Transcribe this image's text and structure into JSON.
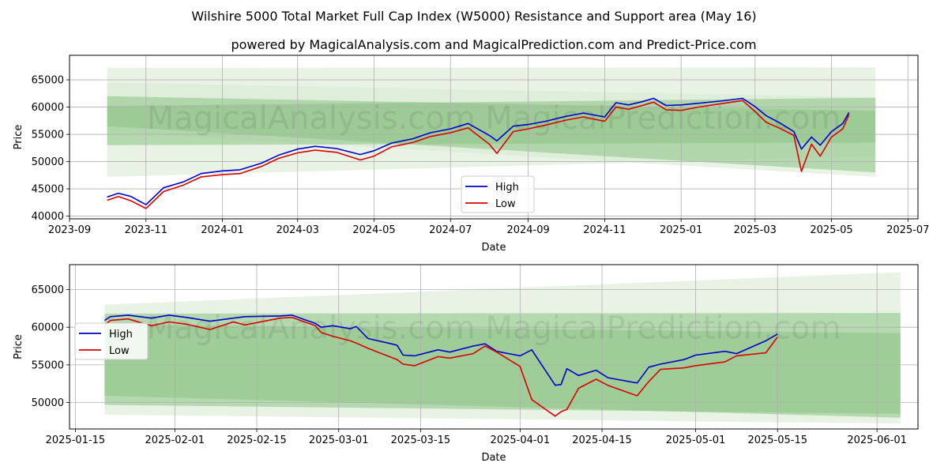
{
  "title": "Wilshire 5000 Total Market Full Cap Index (W5000) Resistance and Support area (May 16)",
  "subtitle": "powered by MagicalAnalysis.com and MagicalPrediction.com and Predict-Price.com",
  "watermark": "MagicalAnalysis.com     MagicalPrediction.com",
  "colors": {
    "high": "#0000cc",
    "low": "#dd0000",
    "band_light": "#d8ebd3",
    "band_dark": "#8ac383"
  },
  "chart_data": [
    {
      "type": "line",
      "xlabel": "Date",
      "ylabel": "Price",
      "ylim": [
        39500,
        69500
      ],
      "xlim": [
        "2023-09-01",
        "2025-07-09"
      ],
      "yticks": [
        40000,
        45000,
        50000,
        55000,
        60000,
        65000
      ],
      "xticks": [
        {
          "date": "2023-09-01",
          "label": "2023-09"
        },
        {
          "date": "2023-11-01",
          "label": "2023-11"
        },
        {
          "date": "2024-01-01",
          "label": "2024-01"
        },
        {
          "date": "2024-03-01",
          "label": "2024-03"
        },
        {
          "date": "2024-05-01",
          "label": "2024-05"
        },
        {
          "date": "2024-07-01",
          "label": "2024-07"
        },
        {
          "date": "2024-09-01",
          "label": "2024-09"
        },
        {
          "date": "2024-11-01",
          "label": "2024-11"
        },
        {
          "date": "2025-01-01",
          "label": "2025-01"
        },
        {
          "date": "2025-03-01",
          "label": "2025-03"
        },
        {
          "date": "2025-05-01",
          "label": "2025-05"
        },
        {
          "date": "2025-07-01",
          "label": "2025-07"
        }
      ],
      "legend": "lower-center",
      "bands": [
        {
          "name": "outer-upper",
          "x": [
            "2023-10-01",
            "2025-06-05"
          ],
          "y_top": [
            67200,
            67300
          ],
          "y_bottom": [
            55500,
            47200
          ],
          "shade": "light"
        },
        {
          "name": "outer-lower",
          "x": [
            "2023-10-01",
            "2025-06-05"
          ],
          "y_top": [
            64500,
            61800
          ],
          "y_bottom": [
            47200,
            51000
          ],
          "shade": "light"
        },
        {
          "name": "inner-upper",
          "x": [
            "2023-10-01",
            "2025-06-05"
          ],
          "y_top": [
            60200,
            61700
          ],
          "y_bottom": [
            56500,
            48000
          ],
          "shade": "dark"
        },
        {
          "name": "inner-lower",
          "x": [
            "2023-10-01",
            "2025-06-05"
          ],
          "y_top": [
            62000,
            59300
          ],
          "y_bottom": [
            53000,
            53500
          ],
          "shade": "dark"
        }
      ],
      "series": [
        {
          "name": "High",
          "x": [
            "2023-10-01",
            "2023-10-10",
            "2023-10-20",
            "2023-11-01",
            "2023-11-15",
            "2023-12-01",
            "2023-12-15",
            "2024-01-01",
            "2024-01-15",
            "2024-02-01",
            "2024-02-15",
            "2024-03-01",
            "2024-03-15",
            "2024-04-01",
            "2024-04-20",
            "2024-05-01",
            "2024-05-15",
            "2024-06-01",
            "2024-06-15",
            "2024-07-01",
            "2024-07-15",
            "2024-08-01",
            "2024-08-07",
            "2024-08-20",
            "2024-09-01",
            "2024-09-15",
            "2024-10-01",
            "2024-10-15",
            "2024-11-01",
            "2024-11-10",
            "2024-11-20",
            "2024-12-01",
            "2024-12-10",
            "2024-12-20",
            "2025-01-01",
            "2025-01-15",
            "2025-02-01",
            "2025-02-19",
            "2025-03-01",
            "2025-03-10",
            "2025-03-20",
            "2025-04-01",
            "2025-04-07",
            "2025-04-15",
            "2025-04-22",
            "2025-05-01",
            "2025-05-10",
            "2025-05-15"
          ],
          "values": [
            43500,
            44200,
            43600,
            42100,
            45200,
            46300,
            47800,
            48300,
            48500,
            49700,
            51200,
            52300,
            52800,
            52400,
            51300,
            52000,
            53400,
            54200,
            55300,
            56000,
            57000,
            54800,
            53800,
            56500,
            56800,
            57400,
            58300,
            58900,
            58200,
            60800,
            60400,
            61000,
            61600,
            60300,
            60400,
            60700,
            61100,
            61600,
            60100,
            58400,
            57200,
            55500,
            52300,
            54500,
            53000,
            55500,
            57000,
            59000
          ]
        },
        {
          "name": "Low",
          "x": [
            "2023-10-01",
            "2023-10-10",
            "2023-10-20",
            "2023-11-01",
            "2023-11-15",
            "2023-12-01",
            "2023-12-15",
            "2024-01-01",
            "2024-01-15",
            "2024-02-01",
            "2024-02-15",
            "2024-03-01",
            "2024-03-15",
            "2024-04-01",
            "2024-04-20",
            "2024-05-01",
            "2024-05-15",
            "2024-06-01",
            "2024-06-15",
            "2024-07-01",
            "2024-07-15",
            "2024-08-01",
            "2024-08-07",
            "2024-08-20",
            "2024-09-01",
            "2024-09-15",
            "2024-10-01",
            "2024-10-15",
            "2024-11-01",
            "2024-11-10",
            "2024-11-20",
            "2024-12-01",
            "2024-12-10",
            "2024-12-20",
            "2025-01-01",
            "2025-01-15",
            "2025-02-01",
            "2025-02-19",
            "2025-03-01",
            "2025-03-10",
            "2025-03-20",
            "2025-04-01",
            "2025-04-07",
            "2025-04-15",
            "2025-04-22",
            "2025-05-01",
            "2025-05-10",
            "2025-05-15"
          ],
          "values": [
            42900,
            43600,
            42800,
            41400,
            44500,
            45700,
            47200,
            47600,
            47800,
            49100,
            50600,
            51600,
            52100,
            51700,
            50300,
            51000,
            52700,
            53500,
            54600,
            55300,
            56200,
            53200,
            51500,
            55500,
            56000,
            56700,
            57600,
            58200,
            57400,
            60000,
            59600,
            60300,
            60900,
            59500,
            59400,
            60000,
            60600,
            61200,
            59200,
            57200,
            56200,
            54800,
            48200,
            53200,
            51000,
            54500,
            56000,
            58600
          ]
        }
      ]
    },
    {
      "type": "line",
      "xlabel": "Date",
      "ylabel": "Price",
      "ylim": [
        46500,
        68300
      ],
      "xlim": [
        "2025-01-14",
        "2025-06-08"
      ],
      "yticks": [
        50000,
        55000,
        60000,
        65000
      ],
      "xticks": [
        {
          "date": "2025-01-15",
          "label": "2025-01-15"
        },
        {
          "date": "2025-02-01",
          "label": "2025-02-01"
        },
        {
          "date": "2025-02-15",
          "label": "2025-02-15"
        },
        {
          "date": "2025-03-01",
          "label": "2025-03-01"
        },
        {
          "date": "2025-03-15",
          "label": "2025-03-15"
        },
        {
          "date": "2025-04-01",
          "label": "2025-04-01"
        },
        {
          "date": "2025-04-15",
          "label": "2025-04-15"
        },
        {
          "date": "2025-05-01",
          "label": "2025-05-01"
        },
        {
          "date": "2025-05-15",
          "label": "2025-05-15"
        },
        {
          "date": "2025-06-01",
          "label": "2025-06-01"
        }
      ],
      "legend": "center-left",
      "bands": [
        {
          "name": "outer",
          "x": [
            "2025-01-20",
            "2025-06-05"
          ],
          "y_top": [
            63000,
            67300
          ],
          "y_bottom": [
            48400,
            47200
          ],
          "shade": "light"
        },
        {
          "name": "inner-upper",
          "x": [
            "2025-01-20",
            "2025-06-05"
          ],
          "y_top": [
            61800,
            61900
          ],
          "y_bottom": [
            50900,
            48000
          ],
          "shade": "dark"
        },
        {
          "name": "inner-lower",
          "x": [
            "2025-01-20",
            "2025-06-05"
          ],
          "y_top": [
            60400,
            59200
          ],
          "y_bottom": [
            49700,
            48500
          ],
          "shade": "dark"
        }
      ],
      "series": [
        {
          "name": "High",
          "x": [
            "2025-01-20",
            "2025-01-21",
            "2025-01-24",
            "2025-01-28",
            "2025-01-31",
            "2025-02-03",
            "2025-02-07",
            "2025-02-11",
            "2025-02-13",
            "2025-02-19",
            "2025-02-21",
            "2025-02-25",
            "2025-02-26",
            "2025-02-28",
            "2025-03-03",
            "2025-03-04",
            "2025-03-06",
            "2025-03-10",
            "2025-03-11",
            "2025-03-12",
            "2025-03-14",
            "2025-03-18",
            "2025-03-20",
            "2025-03-24",
            "2025-03-26",
            "2025-03-28",
            "2025-04-01",
            "2025-04-03",
            "2025-04-07",
            "2025-04-08",
            "2025-04-09",
            "2025-04-11",
            "2025-04-14",
            "2025-04-16",
            "2025-04-21",
            "2025-04-23",
            "2025-04-25",
            "2025-04-29",
            "2025-05-01",
            "2025-05-06",
            "2025-05-08",
            "2025-05-13",
            "2025-05-15"
          ],
          "values": [
            60900,
            61400,
            61600,
            61200,
            61600,
            61300,
            60800,
            61200,
            61400,
            61500,
            61600,
            60500,
            60000,
            60200,
            59800,
            60100,
            58500,
            57800,
            57600,
            56300,
            56200,
            57000,
            56700,
            57500,
            57800,
            56800,
            56200,
            57000,
            52300,
            52400,
            54500,
            53600,
            54300,
            53300,
            52600,
            54700,
            55100,
            55700,
            56300,
            56800,
            56500,
            58200,
            59100
          ]
        },
        {
          "name": "Low",
          "x": [
            "2025-01-20",
            "2025-01-21",
            "2025-01-24",
            "2025-01-28",
            "2025-01-31",
            "2025-02-03",
            "2025-02-07",
            "2025-02-11",
            "2025-02-13",
            "2025-02-19",
            "2025-02-21",
            "2025-02-25",
            "2025-02-26",
            "2025-02-28",
            "2025-03-03",
            "2025-03-04",
            "2025-03-06",
            "2025-03-10",
            "2025-03-11",
            "2025-03-12",
            "2025-03-14",
            "2025-03-18",
            "2025-03-20",
            "2025-03-24",
            "2025-03-26",
            "2025-03-28",
            "2025-04-01",
            "2025-04-03",
            "2025-04-07",
            "2025-04-08",
            "2025-04-09",
            "2025-04-11",
            "2025-04-14",
            "2025-04-16",
            "2025-04-21",
            "2025-04-23",
            "2025-04-25",
            "2025-04-29",
            "2025-05-01",
            "2025-05-06",
            "2025-05-08",
            "2025-05-13",
            "2025-05-15"
          ],
          "values": [
            60300,
            60900,
            61100,
            60200,
            60700,
            60400,
            59700,
            60700,
            60300,
            61200,
            61300,
            60200,
            59300,
            58800,
            58200,
            57900,
            57200,
            56000,
            55700,
            55100,
            54900,
            56100,
            55900,
            56500,
            57500,
            56700,
            54800,
            50400,
            48200,
            48800,
            49100,
            51900,
            53100,
            52300,
            50900,
            52800,
            54400,
            54600,
            54900,
            55400,
            56200,
            56600,
            58700
          ]
        }
      ]
    }
  ]
}
